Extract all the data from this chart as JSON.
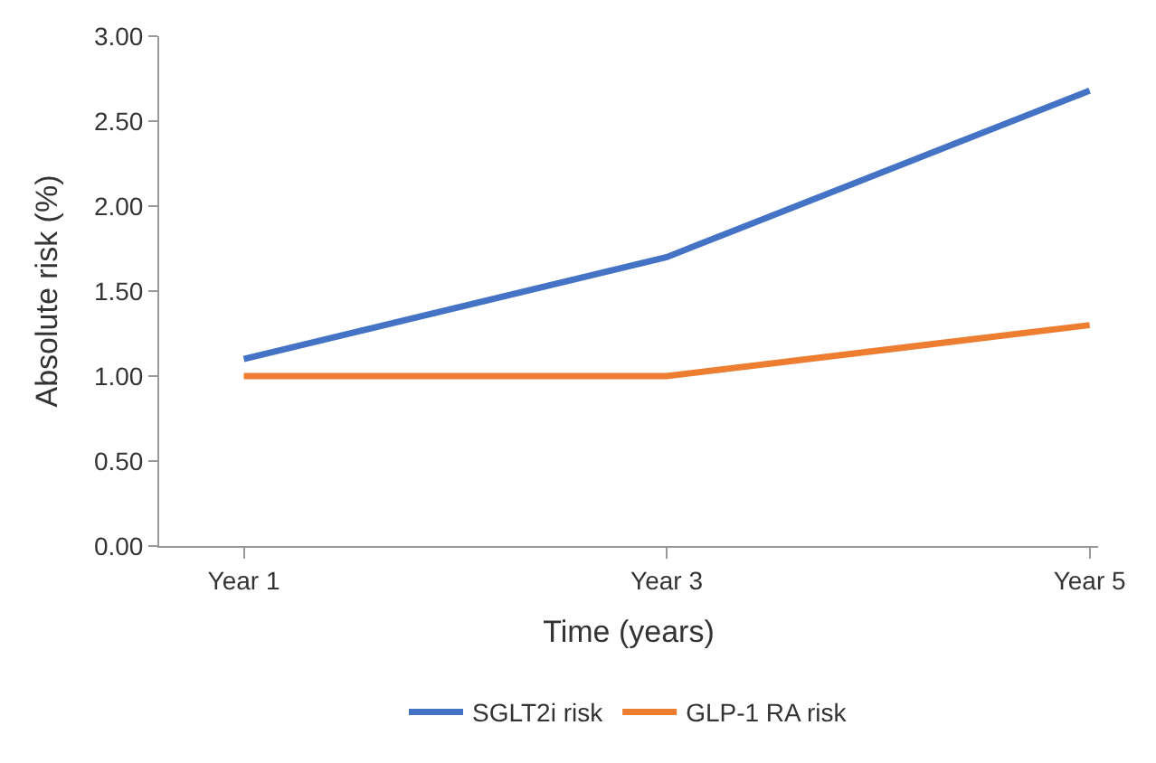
{
  "chart_data": {
    "type": "line",
    "xlabel": "Time (years)",
    "ylabel": "Absolute risk (%)",
    "categories": [
      "Year 1",
      "Year 3",
      "Year 5"
    ],
    "series": [
      {
        "name": "SGLT2i risk",
        "color": "#4472c4",
        "values": [
          1.1,
          1.7,
          2.68
        ]
      },
      {
        "name": "GLP-1 RA risk",
        "color": "#ed7d31",
        "values": [
          1.0,
          1.0,
          1.3
        ]
      }
    ],
    "ylim": [
      0,
      3
    ],
    "yticks": [
      {
        "value": 0,
        "label": "0.00"
      },
      {
        "value": 0.5,
        "label": "0.50"
      },
      {
        "value": 1,
        "label": "1.00"
      },
      {
        "value": 1.5,
        "label": "1.50"
      },
      {
        "value": 2,
        "label": "2.00"
      },
      {
        "value": 2.5,
        "label": "2.50"
      },
      {
        "value": 3,
        "label": "3.00"
      }
    ],
    "legend": "bottom",
    "marker": "none",
    "line_style": "solid"
  }
}
